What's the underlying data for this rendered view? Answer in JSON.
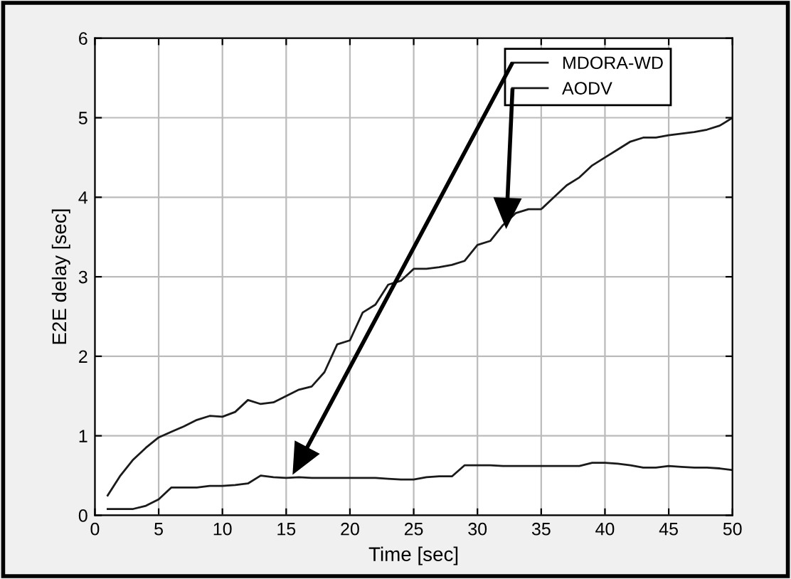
{
  "chart_data": {
    "type": "line",
    "xlabel": "Time [sec]",
    "ylabel": "E2E delay [sec]",
    "x": [
      1,
      2,
      3,
      4,
      5,
      6,
      7,
      8,
      9,
      10,
      11,
      12,
      13,
      14,
      15,
      16,
      17,
      18,
      19,
      20,
      21,
      22,
      23,
      24,
      25,
      26,
      27,
      28,
      29,
      30,
      31,
      32,
      33,
      34,
      35,
      36,
      37,
      38,
      39,
      40,
      41,
      42,
      43,
      44,
      45,
      46,
      47,
      48,
      49,
      50
    ],
    "series": [
      {
        "name": "MDORA-WD",
        "color": "#1a1a1a",
        "values": [
          0.08,
          0.08,
          0.08,
          0.12,
          0.2,
          0.35,
          0.35,
          0.35,
          0.37,
          0.37,
          0.38,
          0.4,
          0.5,
          0.48,
          0.47,
          0.48,
          0.47,
          0.47,
          0.47,
          0.47,
          0.47,
          0.47,
          0.46,
          0.45,
          0.45,
          0.48,
          0.49,
          0.49,
          0.63,
          0.63,
          0.63,
          0.62,
          0.62,
          0.62,
          0.62,
          0.62,
          0.62,
          0.62,
          0.66,
          0.66,
          0.65,
          0.63,
          0.6,
          0.6,
          0.62,
          0.61,
          0.6,
          0.6,
          0.59,
          0.57
        ]
      },
      {
        "name": "AODV",
        "color": "#1a1a1a",
        "values": [
          0.25,
          0.5,
          0.7,
          0.85,
          0.98,
          1.05,
          1.12,
          1.2,
          1.25,
          1.24,
          1.3,
          1.45,
          1.4,
          1.42,
          1.5,
          1.58,
          1.62,
          1.8,
          2.15,
          2.2,
          2.55,
          2.65,
          2.9,
          2.95,
          3.1,
          3.1,
          3.12,
          3.15,
          3.2,
          3.4,
          3.45,
          3.65,
          3.8,
          3.85,
          3.85,
          4.0,
          4.15,
          4.25,
          4.4,
          4.5,
          4.6,
          4.7,
          4.75,
          4.75,
          4.78,
          4.8,
          4.82,
          4.85,
          4.9,
          5.0
        ]
      }
    ],
    "xlim": [
      0,
      50
    ],
    "xticks": [
      0,
      5,
      10,
      15,
      20,
      25,
      30,
      35,
      40,
      45,
      50
    ],
    "ylim": [
      0,
      6
    ],
    "yticks": [
      0,
      1,
      2,
      3,
      4,
      5,
      6
    ],
    "grid": true,
    "legend": "top right",
    "marker": "none",
    "line_style": "solid"
  }
}
